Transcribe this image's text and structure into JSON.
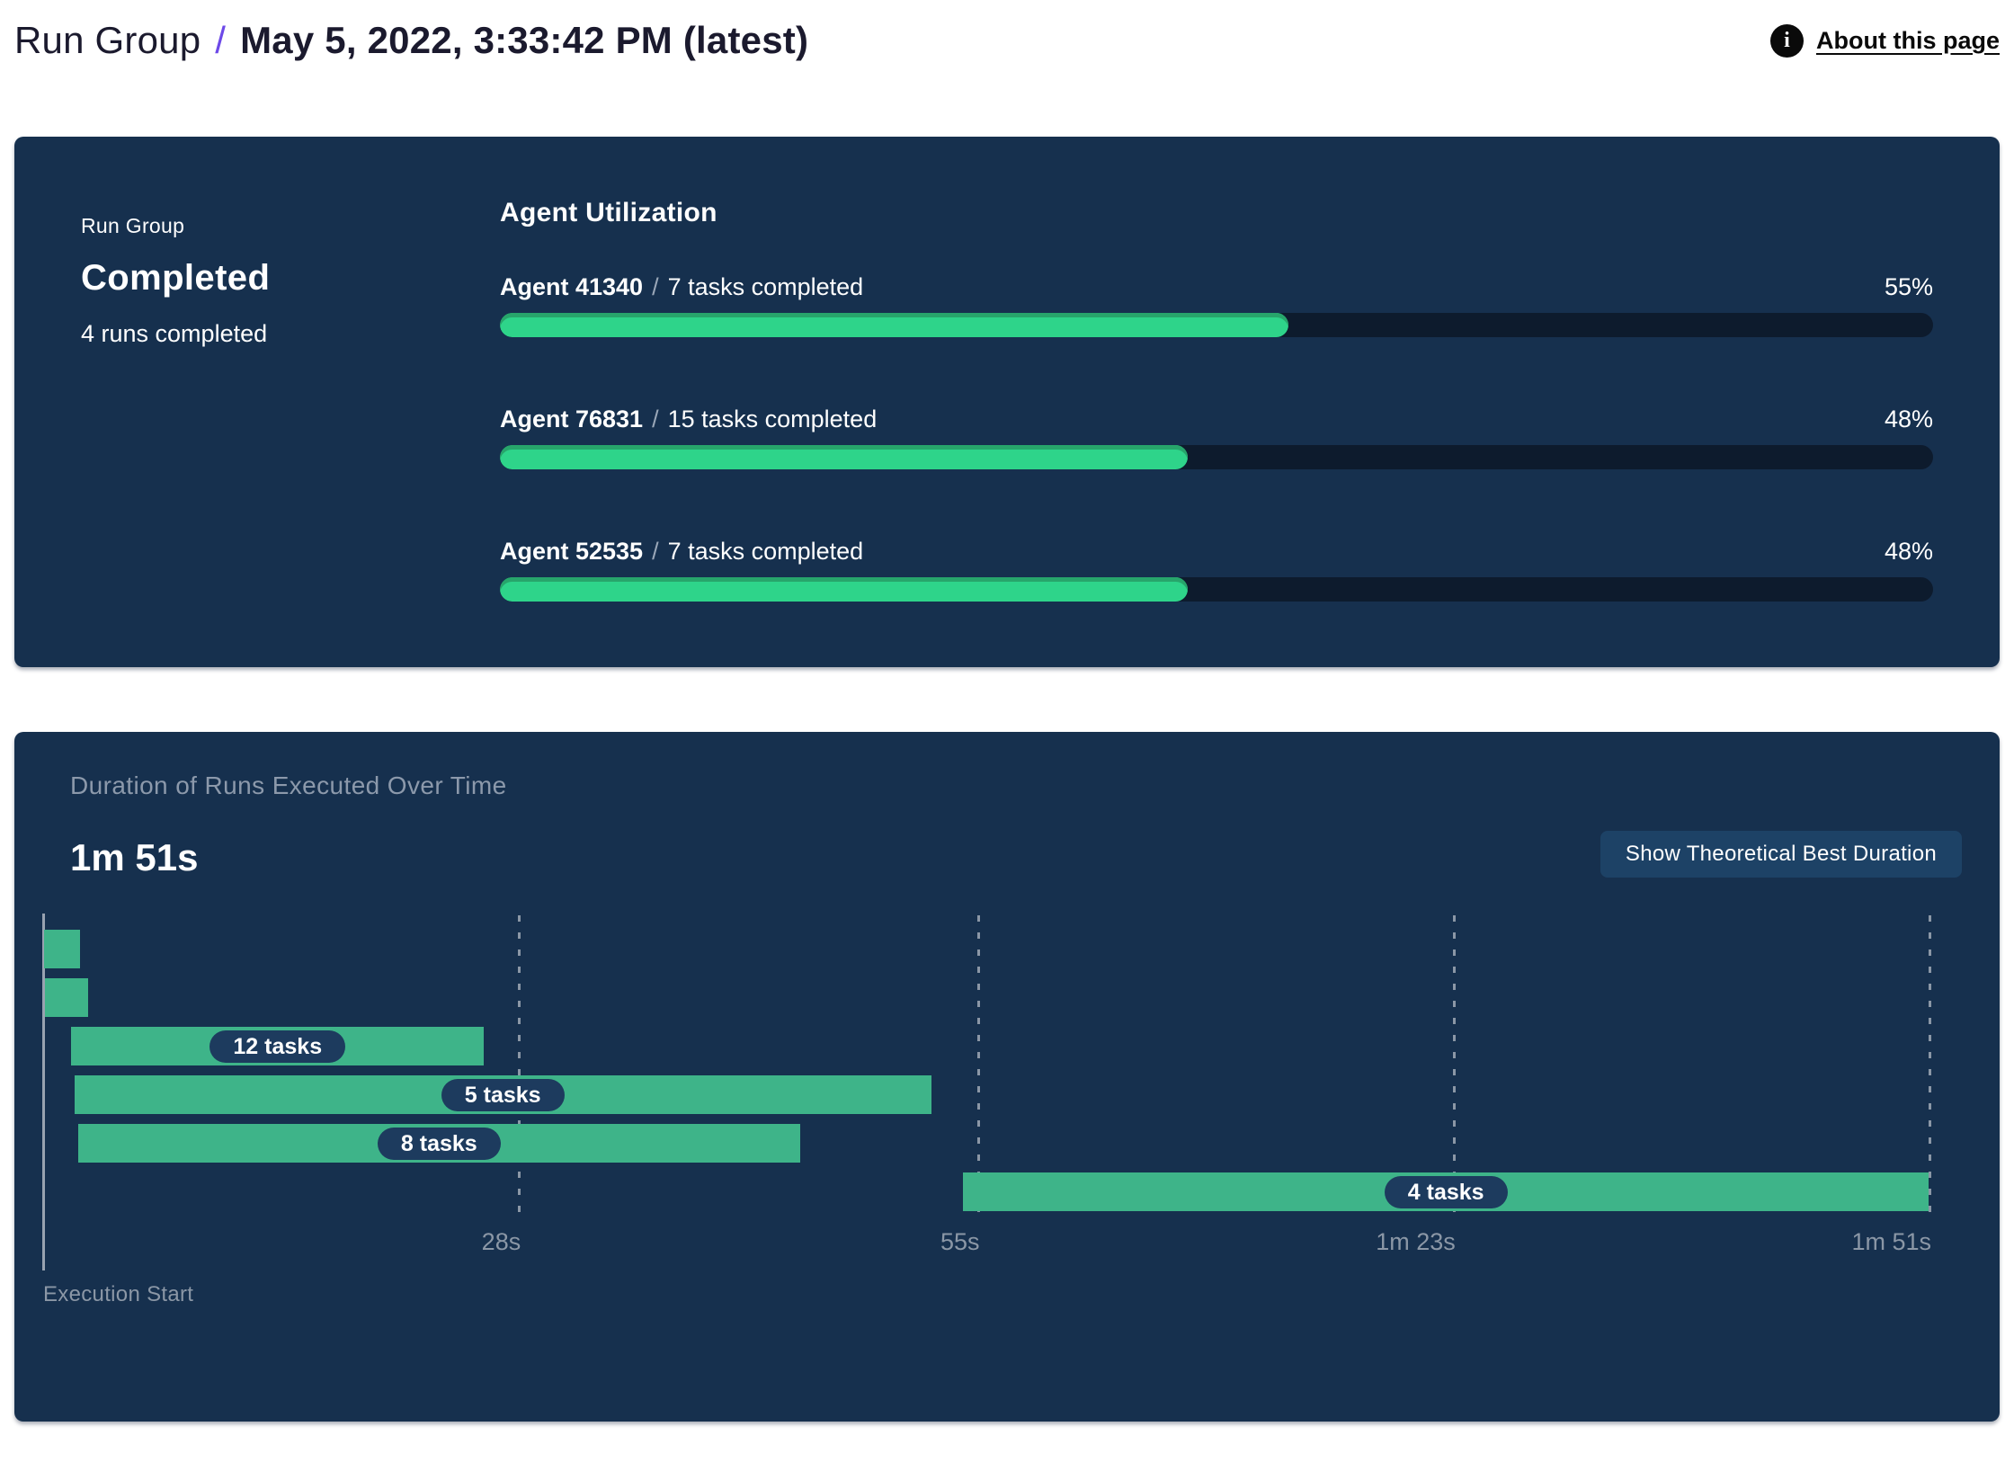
{
  "header": {
    "breadcrumb_root": "Run Group",
    "separator": "/",
    "title": "May 5, 2022, 3:33:42 PM (latest)",
    "info_icon": "i",
    "about_link": "About this page"
  },
  "summary_panel": {
    "group_label": "Run Group",
    "status": "Completed",
    "runs_completed": "4 runs completed",
    "utilization": {
      "title": "Agent Utilization",
      "agents": [
        {
          "name": "Agent 41340",
          "separator": "/",
          "tasks": "7 tasks completed",
          "percent": "55%",
          "value": 55
        },
        {
          "name": "Agent 76831",
          "separator": "/",
          "tasks": "15 tasks completed",
          "percent": "48%",
          "value": 48
        },
        {
          "name": "Agent 52535",
          "separator": "/",
          "tasks": "7 tasks completed",
          "percent": "48%",
          "value": 48
        }
      ]
    }
  },
  "duration_panel": {
    "title": "Duration of Runs Executed Over Time",
    "total_duration": "1m 51s",
    "button_label": "Show Theoretical Best Duration",
    "axis_label": "Execution Start"
  },
  "chart_data": {
    "type": "gantt",
    "title": "Duration of Runs Executed Over Time",
    "total_duration_label": "1m 51s",
    "x_unit": "seconds",
    "xlim": [
      0,
      111
    ],
    "ticks": [
      {
        "t": 28,
        "label": "28s"
      },
      {
        "t": 55,
        "label": "55s"
      },
      {
        "t": 83,
        "label": "1m 23s"
      },
      {
        "t": 111,
        "label": "1m 51s"
      }
    ],
    "bars": [
      {
        "row": 0,
        "start": 0.1,
        "end": 2.2,
        "label": null
      },
      {
        "row": 1,
        "start": 0.15,
        "end": 2.7,
        "label": null
      },
      {
        "row": 2,
        "start": 1.7,
        "end": 26.0,
        "label": "12 tasks"
      },
      {
        "row": 3,
        "start": 1.9,
        "end": 52.3,
        "label": "5 tasks"
      },
      {
        "row": 4,
        "start": 2.1,
        "end": 44.6,
        "label": "8 tasks"
      },
      {
        "row": 5,
        "start": 54.2,
        "end": 111,
        "label": "4 tasks"
      }
    ],
    "bar_color": "#3eb489",
    "grid_color": "#8b97a6",
    "accent_green": "#2ed48a",
    "panel_navy": "#16304e"
  }
}
